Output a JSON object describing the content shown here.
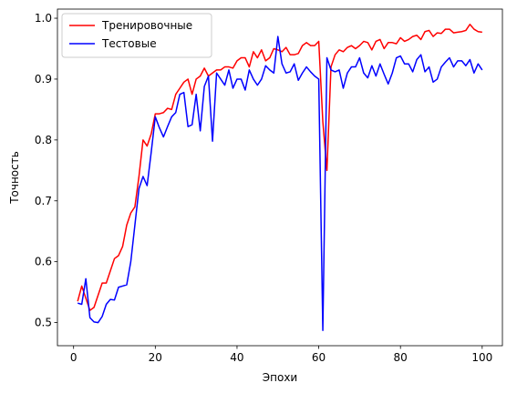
{
  "chart_data": {
    "type": "line",
    "xlabel": "Эпохи",
    "ylabel": "Точность",
    "x": [
      1,
      2,
      3,
      4,
      5,
      6,
      7,
      8,
      9,
      10,
      11,
      12,
      13,
      14,
      15,
      16,
      17,
      18,
      19,
      20,
      21,
      22,
      23,
      24,
      25,
      26,
      27,
      28,
      29,
      30,
      31,
      32,
      33,
      34,
      35,
      36,
      37,
      38,
      39,
      40,
      41,
      42,
      43,
      44,
      45,
      46,
      47,
      48,
      49,
      50,
      51,
      52,
      53,
      54,
      55,
      56,
      57,
      58,
      59,
      60,
      61,
      62,
      63,
      64,
      65,
      66,
      67,
      68,
      69,
      70,
      71,
      72,
      73,
      74,
      75,
      76,
      77,
      78,
      79,
      80,
      81,
      82,
      83,
      84,
      85,
      86,
      87,
      88,
      89,
      90,
      91,
      92,
      93,
      94,
      95,
      96,
      97,
      98,
      99,
      100
    ],
    "series": [
      {
        "name": "Тренировочные",
        "color": "#ff0000",
        "values": [
          0.535,
          0.56,
          0.54,
          0.52,
          0.525,
          0.545,
          0.565,
          0.565,
          0.585,
          0.605,
          0.61,
          0.625,
          0.66,
          0.68,
          0.69,
          0.74,
          0.8,
          0.79,
          0.81,
          0.843,
          0.843,
          0.845,
          0.852,
          0.85,
          0.875,
          0.885,
          0.895,
          0.9,
          0.875,
          0.9,
          0.905,
          0.918,
          0.905,
          0.91,
          0.915,
          0.915,
          0.92,
          0.92,
          0.918,
          0.93,
          0.935,
          0.935,
          0.92,
          0.945,
          0.935,
          0.948,
          0.93,
          0.935,
          0.95,
          0.948,
          0.945,
          0.952,
          0.94,
          0.94,
          0.942,
          0.955,
          0.96,
          0.955,
          0.955,
          0.962,
          0.83,
          0.75,
          0.92,
          0.94,
          0.948,
          0.945,
          0.952,
          0.955,
          0.95,
          0.955,
          0.962,
          0.96,
          0.948,
          0.962,
          0.965,
          0.95,
          0.96,
          0.96,
          0.958,
          0.968,
          0.962,
          0.965,
          0.97,
          0.972,
          0.965,
          0.978,
          0.98,
          0.97,
          0.976,
          0.975,
          0.982,
          0.982,
          0.976,
          0.977,
          0.978,
          0.98,
          0.99,
          0.982,
          0.978,
          0.977
        ]
      },
      {
        "name": "Тестовые",
        "color": "#0000ff",
        "values": [
          0.532,
          0.53,
          0.572,
          0.508,
          0.501,
          0.5,
          0.51,
          0.53,
          0.538,
          0.537,
          0.558,
          0.56,
          0.562,
          0.6,
          0.66,
          0.72,
          0.74,
          0.725,
          0.78,
          0.838,
          0.82,
          0.805,
          0.822,
          0.838,
          0.845,
          0.875,
          0.878,
          0.822,
          0.825,
          0.875,
          0.815,
          0.888,
          0.905,
          0.798,
          0.91,
          0.9,
          0.89,
          0.915,
          0.885,
          0.9,
          0.9,
          0.882,
          0.915,
          0.9,
          0.89,
          0.9,
          0.922,
          0.915,
          0.91,
          0.97,
          0.925,
          0.91,
          0.912,
          0.925,
          0.898,
          0.91,
          0.92,
          0.912,
          0.905,
          0.9,
          0.487,
          0.935,
          0.915,
          0.912,
          0.915,
          0.885,
          0.91,
          0.92,
          0.92,
          0.935,
          0.91,
          0.902,
          0.922,
          0.905,
          0.925,
          0.908,
          0.892,
          0.91,
          0.935,
          0.938,
          0.925,
          0.925,
          0.912,
          0.932,
          0.94,
          0.912,
          0.92,
          0.895,
          0.9,
          0.92,
          0.928,
          0.935,
          0.92,
          0.93,
          0.93,
          0.922,
          0.932,
          0.91,
          0.925,
          0.915
        ]
      }
    ],
    "xlim": [
      -3.95,
      104.95
    ],
    "xticks": [
      0,
      20,
      40,
      60,
      80,
      100
    ],
    "ylim": [
      0.462,
      1.015
    ],
    "yticks": [
      0.5,
      0.6,
      0.7,
      0.8,
      0.9,
      {
        "value": 1,
        "label": "1.0"
      }
    ],
    "legend": "upper left"
  }
}
